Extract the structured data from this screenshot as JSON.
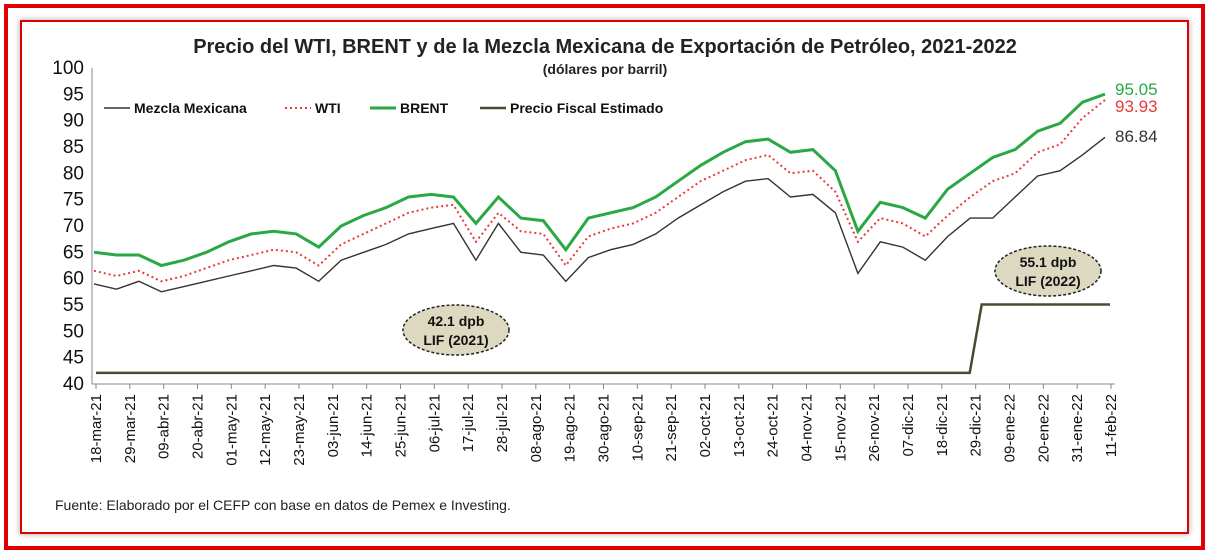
{
  "chart_data": {
    "type": "line",
    "title": "Precio del WTI, BRENT y de la Mezcla Mexicana de Exportación de Petróleo, 2021-2022",
    "subtitle": "(dólares por barril)",
    "ylim": [
      40,
      100
    ],
    "yticks": [
      "100",
      "95",
      "90",
      "85",
      "80",
      "75",
      "70",
      "65",
      "60",
      "55",
      "50",
      "45",
      "40"
    ],
    "xticks": [
      "18-mar-21",
      "29-mar-21",
      "09-abr-21",
      "20-abr-21",
      "01-may-21",
      "12-may-21",
      "23-may-21",
      "03-jun-21",
      "14-jun-21",
      "25-jun-21",
      "06-jul-21",
      "17-jul-21",
      "28-jul-21",
      "08-ago-21",
      "19-ago-21",
      "30-ago-21",
      "10-sep-21",
      "21-sep-21",
      "02-oct-21",
      "13-oct-21",
      "24-oct-21",
      "04-nov-21",
      "15-nov-21",
      "26-nov-21",
      "07-dic-21",
      "18-dic-21",
      "29-dic-21",
      "09-ene-22",
      "20-ene-22",
      "31-ene-22",
      "11-feb-22"
    ],
    "series": [
      {
        "name": "Mezcla Mexicana",
        "color": "#333333",
        "style": "solid",
        "values": [
          59,
          58,
          59.5,
          57.5,
          58.5,
          59.5,
          60.5,
          61.5,
          62.5,
          62,
          59.5,
          63.5,
          65,
          66.5,
          68.5,
          69.5,
          70.5,
          63.5,
          70.5,
          65,
          64.5,
          59.5,
          64,
          65.5,
          66.5,
          68.5,
          71.5,
          74,
          76.5,
          78.5,
          79,
          75.5,
          76,
          72.5,
          61,
          67,
          66,
          63.5,
          68,
          71.5,
          71.5,
          75.5,
          79.5,
          80.5,
          83.5,
          86.84
        ]
      },
      {
        "name": "WTI",
        "color": "#e83a3a",
        "style": "dotted",
        "values": [
          61.5,
          60.5,
          61.5,
          59.5,
          60.5,
          62,
          63.5,
          64.5,
          65.5,
          65,
          62.5,
          66.5,
          68.5,
          70.5,
          72.5,
          73.5,
          74,
          67,
          72.5,
          69,
          68.5,
          62.5,
          68,
          69.5,
          70.5,
          72.5,
          75.5,
          78.5,
          80.5,
          82.5,
          83.5,
          80,
          80.5,
          76.5,
          67,
          71.5,
          70.5,
          68,
          72,
          75.5,
          78.5,
          80,
          84,
          85.5,
          90.5,
          93.93
        ]
      },
      {
        "name": "BRENT",
        "color": "#2aa844",
        "style": "solid",
        "values": [
          65,
          64.5,
          64.5,
          62.5,
          63.5,
          65,
          67,
          68.5,
          69,
          68.5,
          66,
          70,
          72,
          73.5,
          75.5,
          76,
          75.5,
          70.5,
          75.5,
          71.5,
          71,
          65.5,
          71.5,
          72.5,
          73.5,
          75.5,
          78.5,
          81.5,
          84,
          86,
          86.5,
          84,
          84.5,
          80.5,
          69,
          74.5,
          73.5,
          71.5,
          77,
          80,
          83,
          84.5,
          88,
          89.5,
          93.5,
          95.05
        ]
      },
      {
        "name": "Precio Fiscal Estimado",
        "color": "#4a4a30",
        "style": "solid",
        "x": [
          "18-mar-21",
          "27-dic-21",
          "30-dic-21",
          "12-feb-22"
        ],
        "values": [
          42.1,
          42.1,
          55.1,
          55.1
        ]
      }
    ],
    "end_labels": [
      {
        "series": "BRENT",
        "text": "95.05",
        "color": "#2aa844"
      },
      {
        "series": "WTI",
        "text": "93.93",
        "color": "#e83a3a"
      },
      {
        "series": "Mezcla Mexicana",
        "text": "86.84",
        "color": "#333333"
      }
    ],
    "annotations": [
      {
        "line1": "42.1 dpb",
        "line2": "LIF (2021)"
      },
      {
        "line1": "55.1 dpb",
        "line2": "LIF (2022)"
      }
    ],
    "legend": [
      {
        "name": "Mezcla Mexicana",
        "color": "#333333",
        "style": "solid"
      },
      {
        "name": "WTI",
        "color": "#e83a3a",
        "style": "dotted"
      },
      {
        "name": "BRENT",
        "color": "#2aa844",
        "style": "solid"
      },
      {
        "name": "Precio Fiscal Estimado",
        "color": "#4a4a30",
        "style": "solid"
      }
    ],
    "source": "Fuente: Elaborado por el CEFP con base en datos de Pemex e Investing."
  }
}
